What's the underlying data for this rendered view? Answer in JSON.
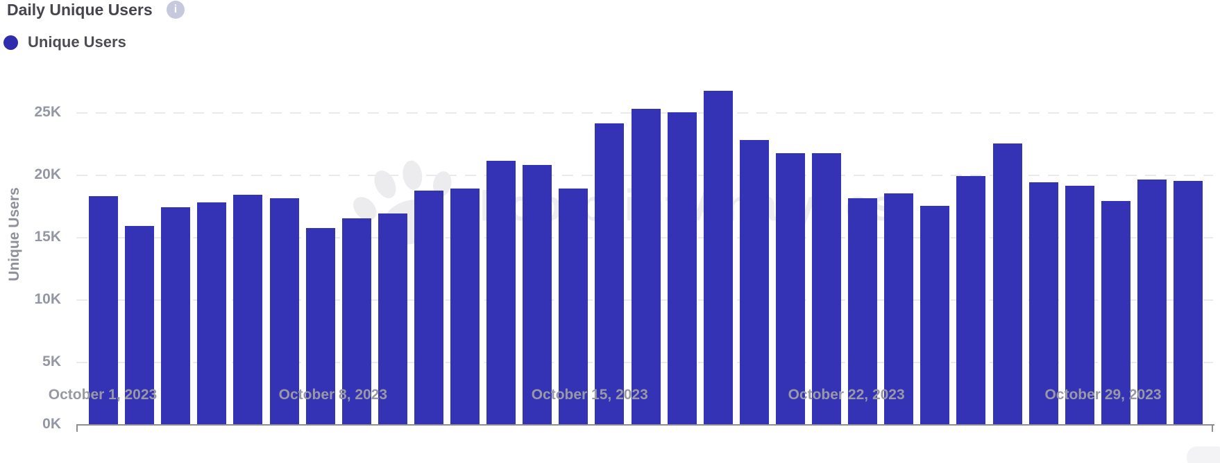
{
  "header": {
    "title": "Daily Unique Users",
    "info_icon_glyph": "i"
  },
  "legend": {
    "items": [
      {
        "label": "Unique Users",
        "color": "#2f2dab"
      }
    ]
  },
  "watermark": {
    "text": "Footprint Analytics",
    "icon": "paw-icon"
  },
  "chart_data": {
    "type": "bar",
    "title": "Daily Unique Users",
    "series_name": "Unique Users",
    "xlabel": "",
    "ylabel": "Unique Users",
    "ylim": [
      0,
      27500
    ],
    "grid": "dashed horizontal gridlines every 5K",
    "legend_position": "top-left",
    "bar_color": "#3533b5",
    "axis_color": "#8d8d92",
    "tick_label_color": "#9297a3",
    "y_ticks": [
      "0K",
      "5K",
      "10K",
      "15K",
      "20K",
      "25K"
    ],
    "y_tick_values": [
      0,
      5000,
      10000,
      15000,
      20000,
      25000
    ],
    "x_ticks_shown": [
      {
        "index": 0,
        "label": "October 1, 2023"
      },
      {
        "index": 7,
        "label": "October 8, 2023"
      },
      {
        "index": 14,
        "label": "October 15, 2023"
      },
      {
        "index": 21,
        "label": "October 22, 2023"
      },
      {
        "index": 28,
        "label": "October 29, 2023"
      }
    ],
    "x": [
      "October 1, 2023",
      "October 2, 2023",
      "October 3, 2023",
      "October 4, 2023",
      "October 5, 2023",
      "October 6, 2023",
      "October 7, 2023",
      "October 8, 2023",
      "October 9, 2023",
      "October 10, 2023",
      "October 11, 2023",
      "October 12, 2023",
      "October 13, 2023",
      "October 14, 2023",
      "October 15, 2023",
      "October 16, 2023",
      "October 17, 2023",
      "October 18, 2023",
      "October 19, 2023",
      "October 20, 2023",
      "October 21, 2023",
      "October 22, 2023",
      "October 23, 2023",
      "October 24, 2023",
      "October 25, 2023",
      "October 26, 2023",
      "October 27, 2023",
      "October 28, 2023",
      "October 29, 2023",
      "October 30, 2023",
      "October 31, 2023"
    ],
    "values": [
      18300,
      15900,
      17400,
      17800,
      18400,
      18100,
      15700,
      16500,
      16900,
      18700,
      18900,
      21100,
      20800,
      18900,
      24100,
      25300,
      25000,
      26700,
      22800,
      21700,
      21700,
      18100,
      18500,
      17500,
      19900,
      22500,
      19400,
      19100,
      17900,
      19600,
      19500
    ]
  }
}
